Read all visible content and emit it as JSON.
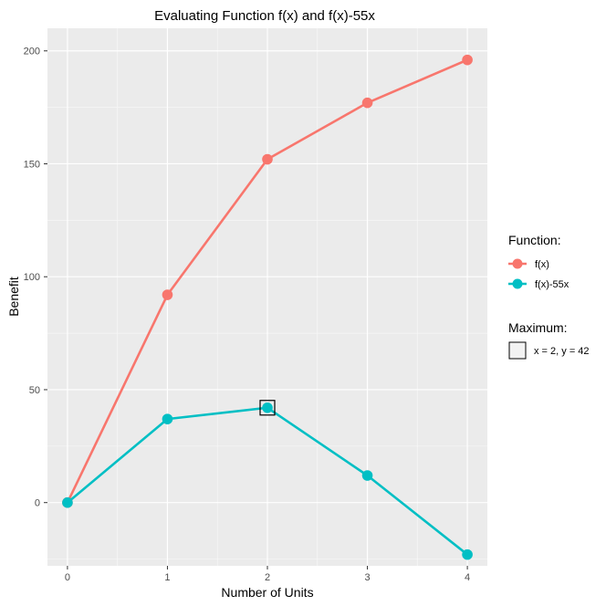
{
  "chart_data": {
    "type": "line",
    "title": "Evaluating Function f(x) and f(x)-55x",
    "xlabel": "Number of Units",
    "ylabel": "Benefit",
    "x": [
      0,
      1,
      2,
      3,
      4
    ],
    "x_ticks": [
      "0",
      "1",
      "2",
      "3",
      "4"
    ],
    "y_ticks": [
      "0",
      "50",
      "100",
      "150",
      "200"
    ],
    "xlim": [
      -0.2,
      4.2
    ],
    "ylim": [
      -28,
      210
    ],
    "grid": true,
    "legend_position": "right",
    "legend": {
      "function_title": "Function:",
      "maximum_title": "Maximum:",
      "maximum_label": "x = 2, y = 42"
    },
    "series": [
      {
        "name": "f(x)",
        "color": "#F8766D",
        "values": [
          0,
          92,
          152,
          177,
          196
        ]
      },
      {
        "name": "f(x)-55x",
        "color": "#00BFC4",
        "values": [
          0,
          37,
          42,
          12,
          -23
        ]
      }
    ],
    "maximum": {
      "x": 2,
      "y": 42
    },
    "colors": {
      "panel_background": "#EBEBEB",
      "grid_major": "#FFFFFF",
      "text": "#000000",
      "tick_text": "#4D4D4D"
    }
  }
}
